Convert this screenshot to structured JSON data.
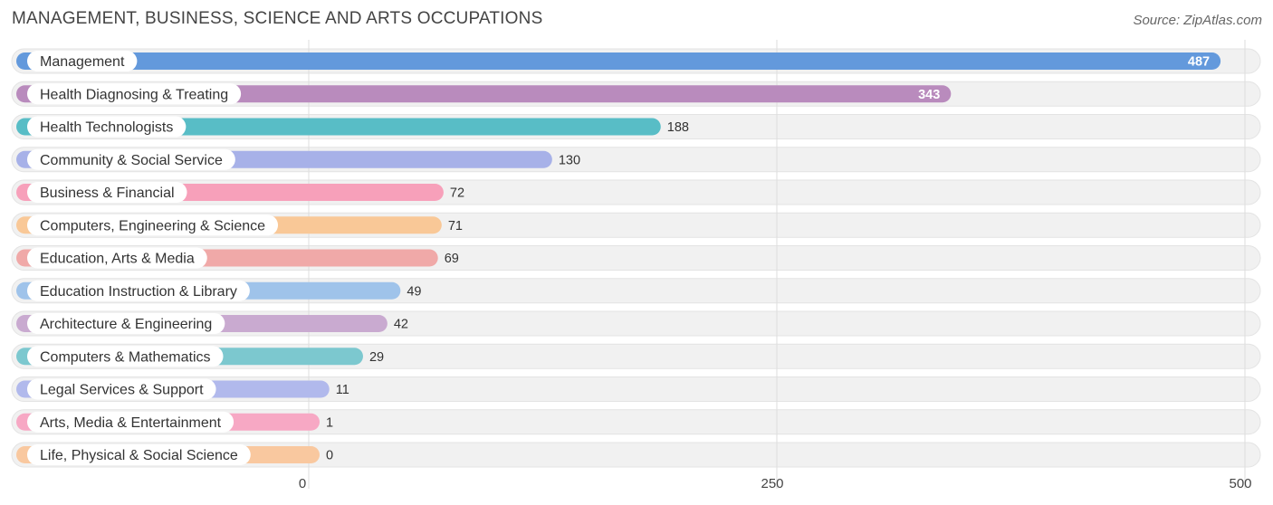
{
  "header": {
    "title": "MANAGEMENT, BUSINESS, SCIENCE AND ARTS OCCUPATIONS",
    "source": "Source: ZipAtlas.com"
  },
  "chart_data": {
    "type": "bar",
    "orientation": "horizontal",
    "title": "MANAGEMENT, BUSINESS, SCIENCE AND ARTS OCCUPATIONS",
    "categories": [
      "Management",
      "Health Diagnosing & Treating",
      "Health Technologists",
      "Community & Social Service",
      "Business & Financial",
      "Computers, Engineering & Science",
      "Education, Arts & Media",
      "Education Instruction & Library",
      "Architecture & Engineering",
      "Computers & Mathematics",
      "Legal Services & Support",
      "Arts, Media & Entertainment",
      "Life, Physical & Social Science"
    ],
    "values": [
      487,
      343,
      188,
      130,
      72,
      71,
      69,
      49,
      42,
      29,
      11,
      1,
      0
    ],
    "value_labels": [
      "487",
      "343",
      "188",
      "130",
      "72",
      "71",
      "69",
      "49",
      "42",
      "29",
      "11",
      "1",
      "0"
    ],
    "colors": [
      "#6399dc",
      "#b98bbd",
      "#58bdc6",
      "#a7b1e8",
      "#f7a0ba",
      "#f9c897",
      "#f0a9a8",
      "#9fc3ea",
      "#c9aad0",
      "#7cc8cf",
      "#b1b9ec",
      "#f7a8c4",
      "#f9c89f"
    ],
    "xlim": [
      0,
      500
    ],
    "ticks": [
      {
        "value": 0,
        "label": "0"
      },
      {
        "value": 250,
        "label": "250"
      },
      {
        "value": 500,
        "label": "500"
      }
    ],
    "grid": true
  }
}
